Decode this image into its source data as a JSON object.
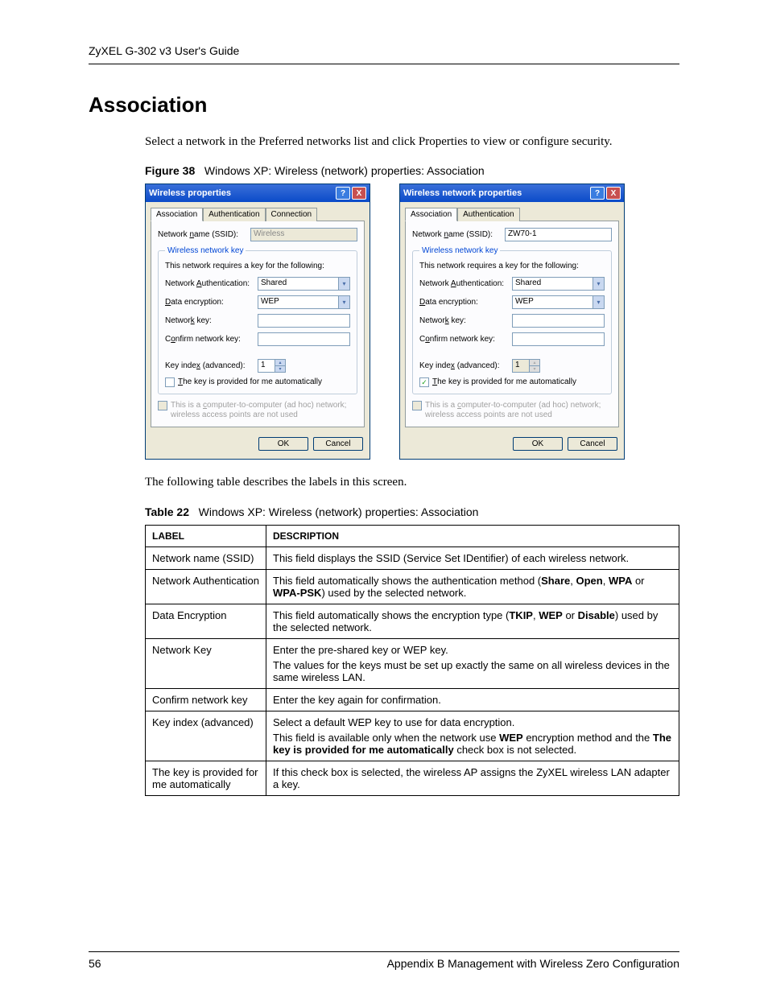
{
  "header": "ZyXEL G-302 v3 User's Guide",
  "title": "Association",
  "intro": "Select a network in the Preferred networks list and click Properties to view or configure security.",
  "figure_label": "Figure 38",
  "figure_caption": "Windows XP: Wireless (network) properties: Association",
  "dialog_common": {
    "tabs": {
      "assoc": "Association",
      "auth": "Authentication",
      "conn": "Connection"
    },
    "ssid_label": "Network name (SSID):",
    "ssid_ul": "n",
    "group_title": "Wireless network key",
    "group_desc": "This network requires a key for the following:",
    "auth_label": "Network Authentication:",
    "auth_ul": "A",
    "enc_label": "Data encryption:",
    "enc_ul": "D",
    "key_label": "Network key:",
    "key_ul": "k",
    "confirm_label": "Confirm network key:",
    "confirm_ul": "o",
    "index_label": "Key index (advanced):",
    "index_ul": "x",
    "auto_label": "The key is provided for me automatically",
    "auto_ul": "T",
    "adhoc_label": "This is a computer-to-computer (ad hoc) network; wireless access points are not used",
    "adhoc_ul": "c",
    "ok": "OK",
    "cancel": "Cancel",
    "auth_value": "Shared",
    "enc_value": "WEP",
    "index_value": "1"
  },
  "dialog1": {
    "title": "Wireless properties",
    "ssid_value": "Wireless",
    "ssid_disabled": true,
    "has_conn_tab": true,
    "index_enabled": true,
    "auto_checked": false
  },
  "dialog2": {
    "title": "Wireless network properties",
    "ssid_value": "ZW70-1",
    "ssid_disabled": false,
    "has_conn_tab": false,
    "index_enabled": false,
    "auto_checked": true
  },
  "after_fig": "The following table describes the labels in this screen.",
  "table_label": "Table 22",
  "table_caption": "Windows XP: Wireless (network) properties: Association",
  "table": {
    "head": {
      "label": "LABEL",
      "desc": "DESCRIPTION"
    },
    "rows": [
      {
        "label": "Network name (SSID)",
        "desc": [
          {
            "segments": [
              {
                "t": "This field displays the SSID (Service Set IDentifier) of each wireless network."
              }
            ]
          }
        ]
      },
      {
        "label": "Network Authentication",
        "desc": [
          {
            "segments": [
              {
                "t": "This field automatically shows the authentication method ("
              },
              {
                "t": "Share",
                "b": true
              },
              {
                "t": ", "
              },
              {
                "t": "Open",
                "b": true
              },
              {
                "t": ", "
              },
              {
                "t": "WPA",
                "b": true
              },
              {
                "t": " or "
              },
              {
                "t": "WPA-PSK",
                "b": true
              },
              {
                "t": ") used by the selected network."
              }
            ]
          }
        ]
      },
      {
        "label": "Data Encryption",
        "desc": [
          {
            "segments": [
              {
                "t": "This field automatically shows the encryption type ("
              },
              {
                "t": "TKIP",
                "b": true
              },
              {
                "t": ", "
              },
              {
                "t": "WEP",
                "b": true
              },
              {
                "t": " or "
              },
              {
                "t": "Disable",
                "b": true
              },
              {
                "t": ") used by the selected network."
              }
            ]
          }
        ]
      },
      {
        "label": "Network Key",
        "desc": [
          {
            "segments": [
              {
                "t": "Enter the pre-shared key or WEP key."
              }
            ]
          },
          {
            "segments": [
              {
                "t": "The values for the keys must be set up exactly the same on all wireless devices in the same wireless LAN."
              }
            ]
          }
        ]
      },
      {
        "label": "Confirm network key",
        "desc": [
          {
            "segments": [
              {
                "t": "Enter the key again for confirmation."
              }
            ]
          }
        ]
      },
      {
        "label": "Key index (advanced)",
        "desc": [
          {
            "segments": [
              {
                "t": "Select a default WEP key to use for data encryption."
              }
            ]
          },
          {
            "segments": [
              {
                "t": "This field is available only when the network use "
              },
              {
                "t": "WEP",
                "b": true
              },
              {
                "t": " encryption method and the "
              },
              {
                "t": "The key is provided for me automatically",
                "b": true
              },
              {
                "t": " check box is not selected."
              }
            ]
          }
        ]
      },
      {
        "label": "The key is provided for me automatically",
        "desc": [
          {
            "segments": [
              {
                "t": "If this check box is selected, the wireless AP assigns the ZyXEL wireless LAN adapter a key."
              }
            ]
          }
        ]
      }
    ]
  },
  "footer": {
    "page": "56",
    "appendix": "Appendix B Management with Wireless Zero Configuration"
  }
}
